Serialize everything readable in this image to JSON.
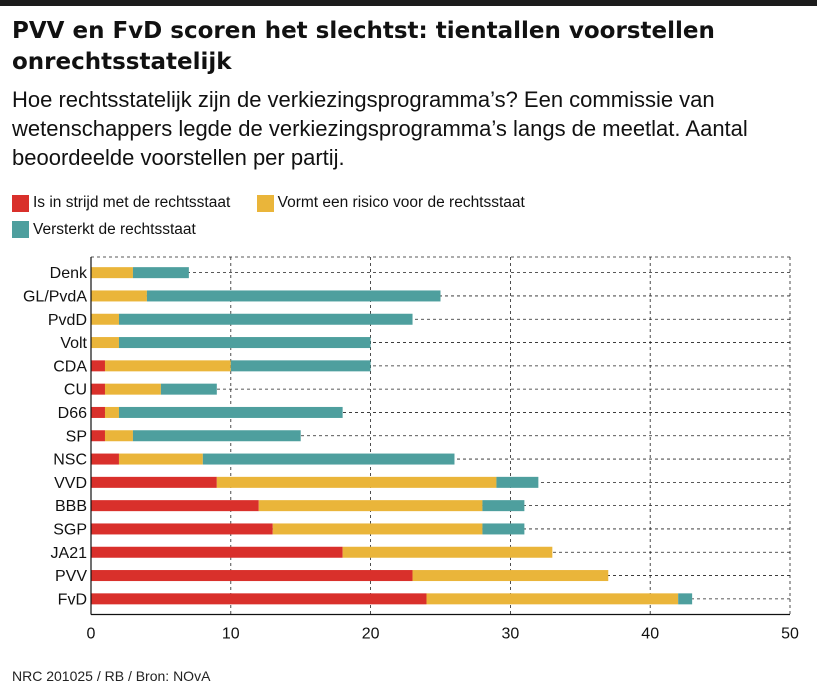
{
  "title": "PVV en FvD scoren het slechtst: tientallen voorstellen onrechtsstatelijk",
  "subtitle": "Hoe rechtsstatelijk zijn de verkiezingsprogramma’s? Een commissie van wetenschappers legde de verkiezingsprogramma’s langs de meetlat. Aantal beoordeelde voorstellen per partij.",
  "legend": [
    {
      "label": "Is in strijd met de rechtsstaat",
      "color": "#d9302b"
    },
    {
      "label": "Vormt een risico voor de rechtsstaat",
      "color": "#eab53a"
    },
    {
      "label": "Versterkt de rechtsstaat",
      "color": "#4e9f9e"
    }
  ],
  "footer": "NRC 201025 / RB / Bron: NOvA",
  "chart_data": {
    "type": "bar",
    "orientation": "horizontal",
    "stacked": true,
    "categories": [
      "Denk",
      "GL/PvdA",
      "PvdD",
      "Volt",
      "CDA",
      "CU",
      "D66",
      "SP",
      "NSC",
      "VVD",
      "BBB",
      "SGP",
      "JA21",
      "PVV",
      "FvD"
    ],
    "series": [
      {
        "name": "Is in strijd met de rechtsstaat",
        "color": "#d9302b",
        "values": [
          0,
          0,
          0,
          0,
          1,
          1,
          1,
          1,
          2,
          9,
          12,
          13,
          18,
          23,
          24
        ]
      },
      {
        "name": "Vormt een risico voor de rechtsstaat",
        "color": "#eab53a",
        "values": [
          3,
          4,
          2,
          2,
          9,
          4,
          1,
          2,
          6,
          20,
          16,
          15,
          15,
          14,
          18
        ]
      },
      {
        "name": "Versterkt de rechtsstaat",
        "color": "#4e9f9e",
        "values": [
          4,
          21,
          21,
          18,
          10,
          4,
          16,
          12,
          18,
          3,
          3,
          3,
          0,
          0,
          1
        ]
      }
    ],
    "xlim": [
      0,
      50
    ],
    "xticks": [
      0,
      10,
      20,
      30,
      40,
      50
    ],
    "grid": "vertical dashed lines at ticks, horizontal dashed lines through rows",
    "legend_position": "top-left"
  }
}
